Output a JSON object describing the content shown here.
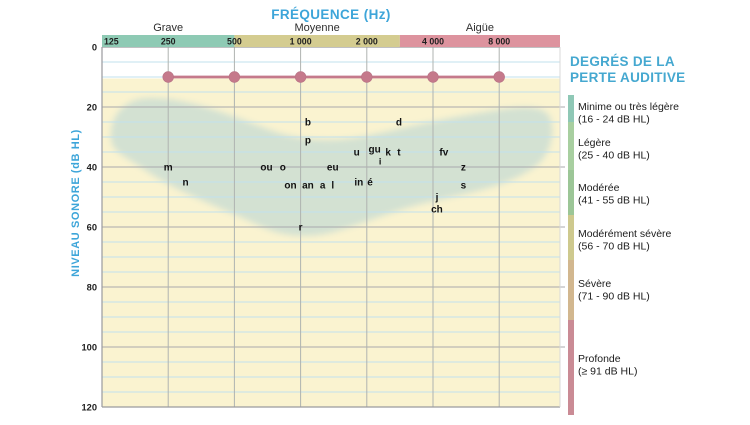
{
  "page": {
    "title": "FRÉQUENCE (Hz)",
    "y_axis_title": "NIVEAU SONORE (dB HL)"
  },
  "colors": {
    "accent_blue": "#3da5d9",
    "plot_bg_yellow": "#faf3d0",
    "plot_bg_top": "#ffffff",
    "grid_minor_blue": "#c2e1ee",
    "grid_major_gray": "#a9a9ad",
    "border_gray": "#9a9a9e",
    "banana_green": "#cfe0d3",
    "threshold_pink": "#c5798b"
  },
  "legend": {
    "heading_line1": "DEGRÉS DE LA",
    "heading_line2": "PERTE AUDITIVE",
    "items": [
      {
        "label": "Minime ou très légère",
        "range": "(16 - 24 dB HL)",
        "db_from": 16,
        "db_to": 24,
        "color": "#8fc8b6"
      },
      {
        "label": "Légère",
        "range": "(25 - 40 dB HL)",
        "db_from": 25,
        "db_to": 40,
        "color": "#a8cfa0"
      },
      {
        "label": "Modérée",
        "range": "(41 - 55 dB HL)",
        "db_from": 41,
        "db_to": 55,
        "color": "#9cc697"
      },
      {
        "label": "Modérément sévère",
        "range": "(56 - 70 dB HL)",
        "db_from": 56,
        "db_to": 70,
        "color": "#cec98e"
      },
      {
        "label": "Sévère",
        "range": "(71 - 90 dB HL)",
        "db_from": 71,
        "db_to": 90,
        "color": "#d2b78f"
      },
      {
        "label": "Profonde",
        "range": "(≥ 91 dB HL)",
        "db_from": 91,
        "db_to": 120,
        "color": "#ca8b95"
      }
    ]
  },
  "chart_data": {
    "type": "scatter",
    "title": "FRÉQUENCE (Hz)",
    "xlabel": "FRÉQUENCE (Hz)",
    "ylabel": "NIVEAU SONORE (dB HL)",
    "x_scale": "log2",
    "ylim": [
      0,
      120
    ],
    "y_axis_inverted_down": true,
    "grid": "on",
    "y_major_step_db": 20,
    "y_minor_step_db": 5,
    "x_ticks": [
      {
        "hz": 125,
        "label": "125"
      },
      {
        "hz": 250,
        "label": "250"
      },
      {
        "hz": 500,
        "label": "500"
      },
      {
        "hz": 1000,
        "label": "1 000"
      },
      {
        "hz": 2000,
        "label": "2 000"
      },
      {
        "hz": 4000,
        "label": "4 000"
      },
      {
        "hz": 8000,
        "label": "8 000"
      }
    ],
    "y_ticks": [
      0,
      20,
      40,
      60,
      80,
      100,
      120
    ],
    "frequency_groups": [
      {
        "label": "Grave",
        "from_hz": 125,
        "to_hz": 500,
        "color": "#8ecab4"
      },
      {
        "label": "Moyenne",
        "from_hz": 500,
        "to_hz": 2828,
        "color": "#d4cc90"
      },
      {
        "label": "Aigüe",
        "from_hz": 2828,
        "to_hz": 16000,
        "color": "#dd939e"
      }
    ],
    "threshold_line": {
      "db": 10,
      "points_hz": [
        250,
        500,
        1000,
        2000,
        4000,
        8000
      ],
      "color": "#c5798b"
    },
    "speech_banana": {
      "color": "#cfe0d3",
      "phonemes": [
        {
          "t": "m",
          "hz": 250,
          "db": 40
        },
        {
          "t": "n",
          "hz": 300,
          "db": 45
        },
        {
          "t": "ou",
          "hz": 700,
          "db": 40
        },
        {
          "t": "o",
          "hz": 830,
          "db": 40
        },
        {
          "t": "on",
          "hz": 900,
          "db": 46
        },
        {
          "t": "b",
          "hz": 1080,
          "db": 25
        },
        {
          "t": "p",
          "hz": 1080,
          "db": 31
        },
        {
          "t": "an",
          "hz": 1080,
          "db": 46
        },
        {
          "t": "a",
          "hz": 1260,
          "db": 46
        },
        {
          "t": "l",
          "hz": 1400,
          "db": 46
        },
        {
          "t": "eu",
          "hz": 1400,
          "db": 40
        },
        {
          "t": "r",
          "hz": 1000,
          "db": 60
        },
        {
          "t": "u",
          "hz": 1800,
          "db": 35
        },
        {
          "t": "in",
          "hz": 1840,
          "db": 45
        },
        {
          "t": "é",
          "hz": 2070,
          "db": 45
        },
        {
          "t": "gu",
          "hz": 2170,
          "db": 34
        },
        {
          "t": "i",
          "hz": 2300,
          "db": 38,
          "size": 9
        },
        {
          "t": "k",
          "hz": 2500,
          "db": 35
        },
        {
          "t": "t",
          "hz": 2800,
          "db": 35
        },
        {
          "t": "d",
          "hz": 2800,
          "db": 25
        },
        {
          "t": "fv",
          "hz": 4480,
          "db": 35
        },
        {
          "t": "j",
          "hz": 4170,
          "db": 50
        },
        {
          "t": "ch",
          "hz": 4170,
          "db": 54
        },
        {
          "t": "z",
          "hz": 5500,
          "db": 40
        },
        {
          "t": "s",
          "hz": 5500,
          "db": 46
        }
      ]
    }
  }
}
